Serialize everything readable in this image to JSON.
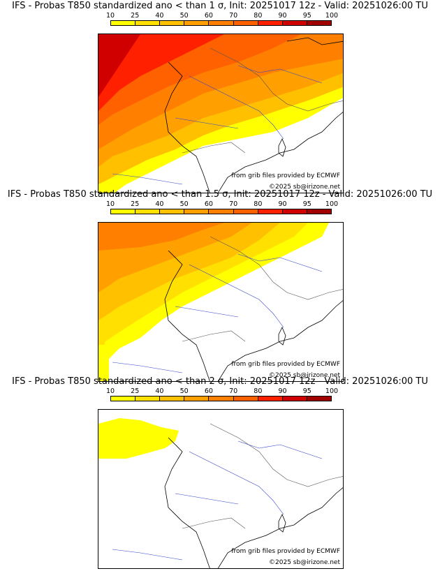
{
  "colorbar": {
    "ticks": [
      "10",
      "25",
      "40",
      "50",
      "60",
      "70",
      "80",
      "90",
      "95",
      "100"
    ],
    "colors": [
      "#ffff00",
      "#ffe000",
      "#ffc000",
      "#ffa000",
      "#ff8000",
      "#ff6000",
      "#ff2000",
      "#d00000",
      "#a00000",
      "#600000"
    ]
  },
  "panels": [
    {
      "title": "IFS - Probas T850  standardized ano < than 1 σ, Init: 20251017 12z - Valid: 20251026:00 TU",
      "credit_source": "from grib files provided by ECMWF",
      "credit_copyright": "©2025 sb@irizone.net"
    },
    {
      "title": "IFS - Probas T850  standardized ano < than 1.5 σ, Init: 20251017 12z - Valid: 20251026:00 TU",
      "credit_source": "from grib files provided by ECMWF",
      "credit_copyright": "©2025 sb@irizone.net"
    },
    {
      "title": "IFS - Probas T850  standardized ano < than 2 σ, Init: 20251017 12z - Valid: 20251026:00 TU",
      "credit_source": "from grib files provided by ECMWF",
      "credit_copyright": "©2025 sb@irizone.net"
    }
  ]
}
